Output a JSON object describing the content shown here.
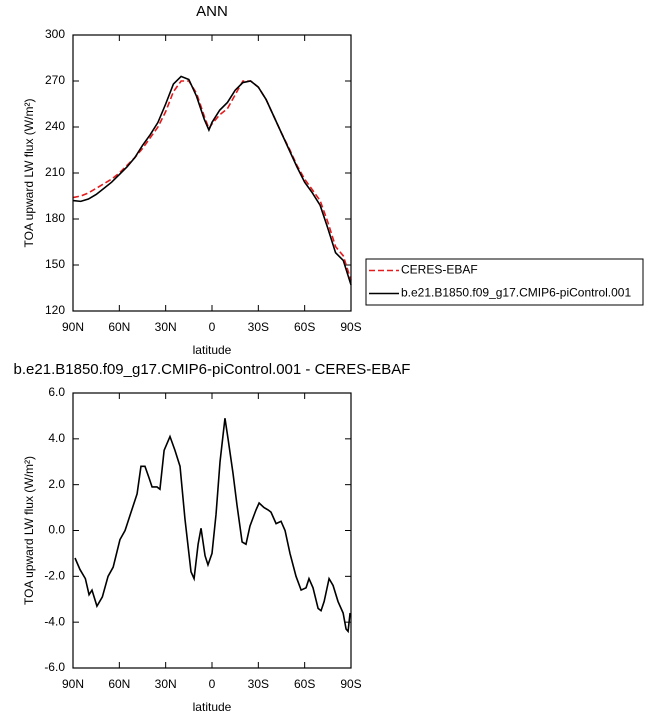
{
  "chart_data": [
    {
      "type": "line",
      "title": "ANN",
      "x_label": "latitude",
      "y_label": "TOA upward LW flux (W/m²)",
      "x": [
        90,
        85,
        80,
        75,
        70,
        65,
        60,
        55,
        50,
        45,
        40,
        35,
        30,
        25,
        20,
        15,
        10,
        5,
        2,
        0,
        -5,
        -10,
        -15,
        -20,
        -25,
        -30,
        -35,
        -40,
        -45,
        -50,
        -55,
        -60,
        -65,
        -70,
        -75,
        -80,
        -85,
        -90
      ],
      "series": [
        {
          "name": "CERES-EBAF",
          "color": "#e41a1c",
          "dashed": true,
          "values": [
            194,
            195,
            197,
            200,
            203,
            206,
            210,
            215,
            220,
            226,
            233,
            240,
            250,
            263,
            270,
            270,
            262,
            247,
            239,
            242,
            248,
            252,
            261,
            270,
            270,
            266,
            258,
            247,
            236,
            226,
            215,
            206,
            199,
            192,
            178,
            162,
            156,
            140
          ]
        },
        {
          "name": "b.e21.B1850.f09_g17.CMIP6-piControl.001",
          "color": "#000000",
          "dashed": false,
          "values": [
            192,
            191.5,
            193,
            196,
            200,
            204,
            209,
            214,
            220,
            228,
            235,
            243,
            255,
            268,
            273,
            271,
            260,
            245,
            238,
            243,
            251,
            256,
            264,
            269,
            270,
            266,
            258,
            247,
            236,
            225,
            214,
            204,
            197,
            189,
            174,
            158,
            153,
            137
          ]
        }
      ],
      "xlim": [
        90,
        -90
      ],
      "xticks": [
        {
          "value": 90,
          "label": "90N"
        },
        {
          "value": 60,
          "label": "60N"
        },
        {
          "value": 30,
          "label": "30N"
        },
        0,
        {
          "value": -30,
          "label": "30S"
        },
        {
          "value": -60,
          "label": "60S"
        },
        {
          "value": -90,
          "label": "90S"
        }
      ],
      "ylim": [
        120,
        300
      ],
      "yticks": [
        120,
        150,
        180,
        210,
        240,
        270,
        300
      ],
      "legend": "outside-right"
    },
    {
      "type": "line",
      "title": "b.e21.B1850.f09_g17.CMIP6-piControl.001 - CERES-EBAF",
      "x_label": "latitude",
      "y_label": "TOA upward LW flux (W/m²)",
      "x": [
        88.7,
        85.5,
        82,
        79.6,
        77.7,
        74.5,
        71,
        67.3,
        64,
        59.6,
        56.3,
        52.4,
        48.5,
        46,
        43.4,
        40.8,
        38.8,
        35.6,
        33.7,
        31,
        27.2,
        24,
        20.7,
        17.5,
        13.6,
        11.6,
        9,
        7.1,
        4.5,
        2.6,
        0,
        -2.6,
        -5.2,
        -8.4,
        -10.4,
        -13.6,
        -16.2,
        -19.5,
        -22,
        -24.6,
        -28.5,
        -30.5,
        -33.7,
        -36.3,
        -38.2,
        -41.5,
        -44.7,
        -47.3,
        -50.5,
        -54.4,
        -57.7,
        -60.9,
        -62.8,
        -65.4,
        -68.7,
        -70.6,
        -72.6,
        -75.8,
        -78.4,
        -81.6,
        -84.9,
        -86.8,
        -88.1,
        -89.4
      ],
      "values": [
        -1.2,
        -1.7,
        -2.1,
        -2.8,
        -2.6,
        -3.3,
        -2.9,
        -2.0,
        -1.6,
        -0.4,
        0.0,
        0.8,
        1.6,
        2.8,
        2.8,
        2.3,
        1.9,
        1.9,
        1.8,
        3.5,
        4.1,
        3.5,
        2.8,
        0.5,
        -1.8,
        -2.1,
        -0.6,
        0.1,
        -1.1,
        -1.5,
        -1.0,
        0.7,
        3.0,
        4.9,
        4.0,
        2.5,
        1.1,
        -0.5,
        -0.6,
        0.2,
        0.9,
        1.2,
        1.0,
        0.9,
        0.8,
        0.3,
        0.4,
        0.0,
        -1.0,
        -2.0,
        -2.6,
        -2.5,
        -2.1,
        -2.5,
        -3.4,
        -3.5,
        -3.1,
        -2.1,
        -2.4,
        -3.1,
        -3.6,
        -4.3,
        -4.4,
        -3.6
      ],
      "color": "#000000",
      "xlim": [
        90,
        -90
      ],
      "xticks": [
        {
          "value": 90,
          "label": "90N"
        },
        {
          "value": 60,
          "label": "60N"
        },
        {
          "value": 30,
          "label": "30N"
        },
        0,
        {
          "value": -30,
          "label": "30S"
        },
        {
          "value": -60,
          "label": "60S"
        },
        {
          "value": -90,
          "label": "90S"
        }
      ],
      "ylim": [
        -6,
        6
      ],
      "yticks": [
        {
          "value": -6,
          "label": "-6.0"
        },
        {
          "value": -4,
          "label": "-4.0"
        },
        {
          "value": -2,
          "label": "-2.0"
        },
        {
          "value": 0,
          "label": "0.0"
        },
        {
          "value": 2,
          "label": "2.0"
        },
        {
          "value": 4,
          "label": "4.0"
        },
        {
          "value": 6,
          "label": "6.0"
        }
      ]
    }
  ]
}
